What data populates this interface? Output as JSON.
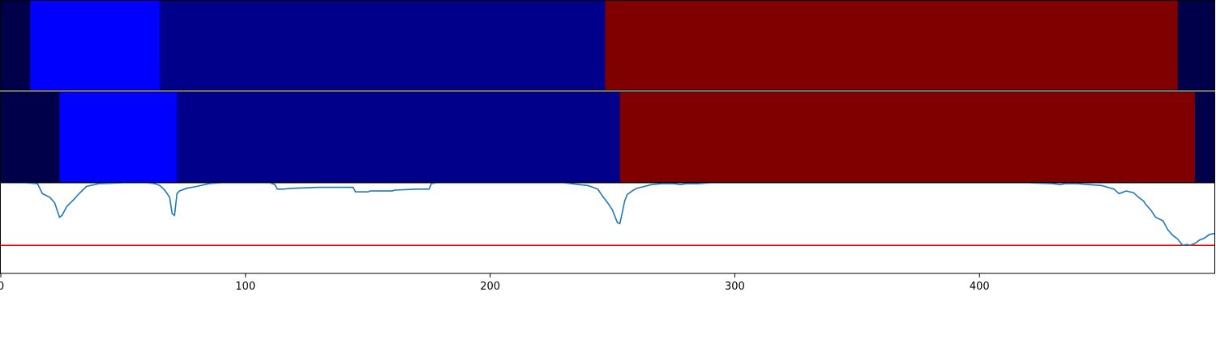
{
  "chart_data": [
    {
      "type": "heatmap",
      "name": "segmentation-1",
      "x_range": [
        0,
        496
      ],
      "segments": [
        {
          "start": 0,
          "end": 12,
          "color": "#00004a"
        },
        {
          "start": 12,
          "end": 65,
          "color": "#0000ff"
        },
        {
          "start": 65,
          "end": 247,
          "color": "#00008a"
        },
        {
          "start": 247,
          "end": 481,
          "color": "#800000"
        },
        {
          "start": 481,
          "end": 496,
          "color": "#00004a"
        }
      ]
    },
    {
      "type": "heatmap",
      "name": "segmentation-2",
      "x_range": [
        0,
        496
      ],
      "segments": [
        {
          "start": 0,
          "end": 24,
          "color": "#00004a"
        },
        {
          "start": 24,
          "end": 72,
          "color": "#0000ff"
        },
        {
          "start": 72,
          "end": 253,
          "color": "#00008a"
        },
        {
          "start": 253,
          "end": 488,
          "color": "#800000"
        },
        {
          "start": 488,
          "end": 496,
          "color": "#00004a"
        }
      ]
    },
    {
      "type": "line",
      "title": "",
      "xlabel": "",
      "ylabel": "",
      "xlim": [
        0,
        496
      ],
      "ylim": [
        0,
        1.0
      ],
      "xticks": [
        "0",
        "100",
        "200",
        "300",
        "400"
      ],
      "tick_values": [
        0,
        100,
        200,
        300,
        400
      ],
      "series_color": "#1f77b4",
      "threshold": {
        "value": 0.31,
        "color": "#ff0000"
      },
      "x": [
        0,
        10,
        15,
        17,
        20,
        22,
        23,
        24,
        25,
        27,
        30,
        32,
        35,
        40,
        50,
        60,
        63,
        65,
        67,
        69,
        70,
        71,
        72,
        73,
        76,
        80,
        85,
        90,
        100,
        110,
        112,
        113,
        115,
        120,
        130,
        140,
        144,
        145,
        150,
        151,
        160,
        161,
        170,
        175,
        176,
        178,
        180,
        190,
        200,
        207,
        208,
        220,
        230,
        240,
        244,
        246,
        248,
        250,
        252,
        253,
        254,
        255,
        256,
        258,
        260,
        263,
        266,
        270,
        275,
        278,
        280,
        285,
        290,
        300,
        350,
        400,
        420,
        430,
        433,
        435,
        440,
        450,
        455,
        457,
        460,
        463,
        465,
        467,
        468,
        470,
        472,
        475,
        477,
        479,
        481,
        483,
        485,
        486,
        488,
        490,
        492,
        494,
        496
      ],
      "y": [
        1.0,
        1.0,
        0.99,
        0.88,
        0.84,
        0.78,
        0.7,
        0.62,
        0.64,
        0.74,
        0.82,
        0.88,
        0.96,
        0.99,
        1.0,
        1.0,
        0.99,
        0.97,
        0.92,
        0.84,
        0.66,
        0.64,
        0.88,
        0.91,
        0.94,
        0.96,
        0.99,
        1.0,
        1.0,
        1.0,
        0.98,
        0.93,
        0.93,
        0.94,
        0.95,
        0.95,
        0.95,
        0.9,
        0.9,
        0.91,
        0.91,
        0.92,
        0.93,
        0.93,
        0.99,
        1.0,
        1.0,
        1.0,
        1.0,
        1.0,
        1.0,
        1.0,
        1.0,
        0.97,
        0.93,
        0.85,
        0.78,
        0.7,
        0.56,
        0.55,
        0.67,
        0.8,
        0.87,
        0.91,
        0.94,
        0.96,
        0.98,
        0.99,
        0.99,
        0.98,
        0.99,
        0.99,
        1.0,
        1.0,
        1.0,
        1.0,
        1.0,
        0.99,
        0.98,
        0.99,
        0.99,
        0.97,
        0.93,
        0.88,
        0.91,
        0.89,
        0.84,
        0.8,
        0.76,
        0.7,
        0.62,
        0.58,
        0.48,
        0.42,
        0.38,
        0.31,
        0.32,
        0.31,
        0.33,
        0.37,
        0.39,
        0.43,
        0.44
      ]
    }
  ]
}
